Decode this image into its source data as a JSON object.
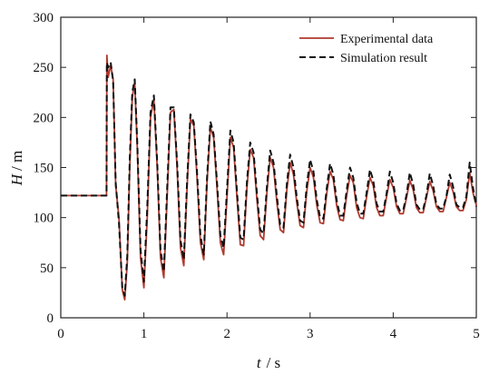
{
  "chart_data": {
    "type": "line",
    "title": "",
    "xlabel": {
      "symbol": "t",
      "unit": "/ s"
    },
    "ylabel": {
      "symbol": "H",
      "unit": "/ m"
    },
    "xlim": [
      0,
      5
    ],
    "ylim": [
      0,
      300
    ],
    "xticks": [
      0,
      1,
      2,
      3,
      4,
      5
    ],
    "yticks": [
      0,
      50,
      100,
      150,
      200,
      250,
      300
    ],
    "grid": false,
    "legend_position": "top-right",
    "series": [
      {
        "name": "Experimental data",
        "color": "#b03a2e",
        "style": "solid",
        "x": [
          0,
          0.55,
          0.555,
          0.57,
          0.6,
          0.63,
          0.66,
          0.7,
          0.74,
          0.77,
          0.8,
          0.83,
          0.86,
          0.89,
          0.92,
          0.96,
          1.0,
          1.04,
          1.08,
          1.12,
          1.16,
          1.2,
          1.24,
          1.28,
          1.32,
          1.36,
          1.4,
          1.44,
          1.48,
          1.52,
          1.56,
          1.6,
          1.64,
          1.68,
          1.72,
          1.76,
          1.8,
          1.84,
          1.88,
          1.92,
          1.96,
          2.0,
          2.04,
          2.08,
          2.12,
          2.16,
          2.2,
          2.24,
          2.28,
          2.32,
          2.36,
          2.4,
          2.44,
          2.48,
          2.52,
          2.56,
          2.6,
          2.64,
          2.68,
          2.72,
          2.76,
          2.8,
          2.84,
          2.88,
          2.92,
          2.96,
          3.0,
          3.04,
          3.08,
          3.12,
          3.16,
          3.2,
          3.24,
          3.28,
          3.32,
          3.36,
          3.4,
          3.44,
          3.48,
          3.52,
          3.56,
          3.6,
          3.64,
          3.68,
          3.72,
          3.76,
          3.8,
          3.84,
          3.88,
          3.92,
          3.96,
          4.0,
          4.04,
          4.08,
          4.12,
          4.16,
          4.2,
          4.24,
          4.28,
          4.32,
          4.36,
          4.4,
          4.44,
          4.48,
          4.52,
          4.56,
          4.6,
          4.64,
          4.68,
          4.72,
          4.76,
          4.8,
          4.84,
          4.88,
          4.92,
          4.96,
          5.0
        ],
        "y": [
          122,
          122,
          262,
          240,
          252,
          238,
          132,
          100,
          28,
          18,
          55,
          150,
          220,
          235,
          170,
          60,
          30,
          100,
          200,
          218,
          150,
          60,
          40,
          120,
          205,
          208,
          150,
          70,
          52,
          130,
          198,
          192,
          140,
          75,
          58,
          135,
          190,
          180,
          130,
          75,
          63,
          120,
          180,
          170,
          120,
          73,
          72,
          130,
          168,
          160,
          118,
          82,
          78,
          125,
          160,
          150,
          115,
          88,
          85,
          128,
          155,
          143,
          115,
          92,
          90,
          126,
          150,
          140,
          113,
          95,
          94,
          124,
          146,
          138,
          112,
          98,
          97,
          122,
          142,
          135,
          110,
          100,
          99,
          121,
          140,
          132,
          110,
          102,
          102,
          121,
          138,
          130,
          111,
          104,
          104,
          120,
          137,
          128,
          110,
          105,
          105,
          120,
          136,
          127,
          111,
          106,
          106,
          120,
          135,
          126,
          111,
          107,
          107,
          118,
          145,
          125,
          112
        ]
      },
      {
        "name": "Simulation result",
        "color": "#111111",
        "style": "dashed",
        "x": [
          0,
          0.55,
          0.555,
          0.57,
          0.6,
          0.63,
          0.66,
          0.7,
          0.74,
          0.77,
          0.8,
          0.83,
          0.86,
          0.89,
          0.92,
          0.96,
          1.0,
          1.04,
          1.08,
          1.12,
          1.16,
          1.2,
          1.24,
          1.28,
          1.32,
          1.36,
          1.4,
          1.44,
          1.48,
          1.52,
          1.56,
          1.6,
          1.64,
          1.68,
          1.72,
          1.76,
          1.8,
          1.84,
          1.88,
          1.92,
          1.96,
          2.0,
          2.04,
          2.08,
          2.12,
          2.16,
          2.2,
          2.24,
          2.28,
          2.32,
          2.36,
          2.4,
          2.44,
          2.48,
          2.52,
          2.56,
          2.6,
          2.64,
          2.68,
          2.72,
          2.76,
          2.8,
          2.84,
          2.88,
          2.92,
          2.96,
          3.0,
          3.04,
          3.08,
          3.12,
          3.16,
          3.2,
          3.24,
          3.28,
          3.32,
          3.36,
          3.4,
          3.44,
          3.48,
          3.52,
          3.56,
          3.6,
          3.64,
          3.68,
          3.72,
          3.76,
          3.8,
          3.84,
          3.88,
          3.92,
          3.96,
          4.0,
          4.04,
          4.08,
          4.12,
          4.16,
          4.2,
          4.24,
          4.28,
          4.32,
          4.36,
          4.4,
          4.44,
          4.48,
          4.52,
          4.56,
          4.6,
          4.64,
          4.68,
          4.72,
          4.76,
          4.8,
          4.84,
          4.88,
          4.92,
          4.96,
          5.0
        ],
        "y": [
          122,
          122,
          255,
          250,
          255,
          236,
          135,
          95,
          30,
          22,
          62,
          158,
          225,
          238,
          175,
          68,
          36,
          110,
          205,
          222,
          155,
          68,
          46,
          128,
          210,
          210,
          155,
          78,
          58,
          136,
          203,
          195,
          145,
          82,
          63,
          140,
          196,
          183,
          135,
          82,
          70,
          128,
          187,
          175,
          126,
          80,
          78,
          136,
          175,
          165,
          124,
          88,
          84,
          131,
          167,
          155,
          121,
          93,
          90,
          134,
          163,
          150,
          120,
          97,
          95,
          132,
          158,
          146,
          118,
          100,
          99,
          129,
          154,
          143,
          117,
          102,
          102,
          127,
          150,
          140,
          115,
          104,
          104,
          125,
          148,
          137,
          114,
          106,
          106,
          124,
          146,
          135,
          114,
          107,
          107,
          123,
          145,
          133,
          113,
          108,
          108,
          122,
          144,
          132,
          113,
          109,
          109,
          121,
          143,
          131,
          113,
          110,
          110,
          121,
          155,
          130,
          111
        ]
      }
    ]
  }
}
